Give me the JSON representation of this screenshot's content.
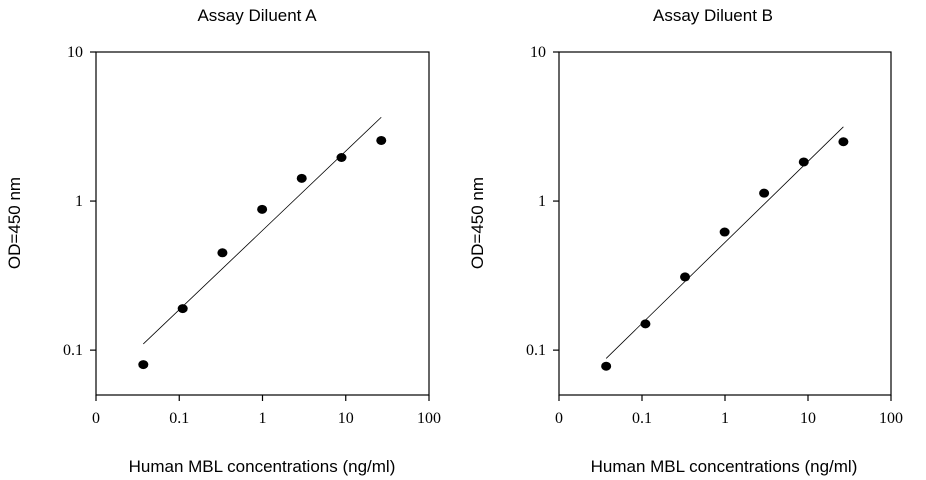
{
  "chart_data": [
    {
      "type": "scatter",
      "title": "Assay Diluent A",
      "xlabel": "Human MBL concentrations (ng/ml)",
      "ylabel": "OD=450 nm",
      "x_scale": "log",
      "y_scale": "log",
      "xlim": [
        0.01,
        100
      ],
      "ylim": [
        0.05,
        10
      ],
      "x_ticks": [
        0.01,
        0.1,
        1,
        10,
        100
      ],
      "x_tick_labels": [
        "0",
        "0.1",
        "1",
        "10",
        "100"
      ],
      "y_ticks": [
        0.1,
        1,
        10
      ],
      "y_tick_labels": [
        "0.1",
        "1",
        "10"
      ],
      "grid": false,
      "series": [
        {
          "x": [
            0.037,
            0.11,
            0.33,
            0.99,
            2.96,
            8.89,
            26.7
          ],
          "y": [
            0.08,
            0.19,
            0.45,
            0.88,
            1.42,
            1.96,
            2.55
          ]
        }
      ],
      "fit_line": {
        "x": [
          0.037,
          26.7
        ],
        "y": [
          0.11,
          3.65
        ]
      }
    },
    {
      "type": "scatter",
      "title": "Assay Diluent B",
      "xlabel": "Human MBL concentrations (ng/ml)",
      "ylabel": "OD=450 nm",
      "x_scale": "log",
      "y_scale": "log",
      "xlim": [
        0.01,
        100
      ],
      "ylim": [
        0.05,
        10
      ],
      "x_ticks": [
        0.01,
        0.1,
        1,
        10,
        100
      ],
      "x_tick_labels": [
        "0",
        "0.1",
        "1",
        "10",
        "100"
      ],
      "y_ticks": [
        0.1,
        1,
        10
      ],
      "y_tick_labels": [
        "0.1",
        "1",
        "10"
      ],
      "grid": false,
      "series": [
        {
          "x": [
            0.037,
            0.11,
            0.33,
            0.99,
            2.96,
            8.89,
            26.7
          ],
          "y": [
            0.078,
            0.15,
            0.31,
            0.62,
            1.13,
            1.83,
            2.5
          ]
        }
      ],
      "fit_line": {
        "x": [
          0.037,
          26.7
        ],
        "y": [
          0.088,
          3.15
        ]
      }
    }
  ]
}
